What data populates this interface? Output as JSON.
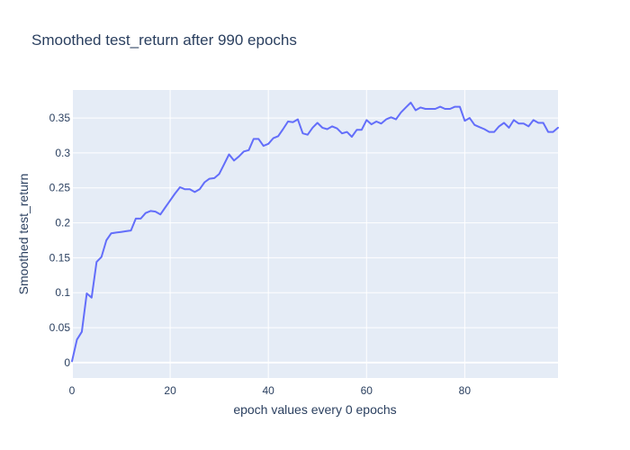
{
  "chart_data": {
    "type": "line",
    "title": "Smoothed test_return after 990 epochs",
    "xlabel": "epoch values every 0 epochs",
    "ylabel": "Smoothed test_return",
    "xlim": [
      0,
      99
    ],
    "ylim": [
      -0.022,
      0.39
    ],
    "x_ticks": [
      0,
      20,
      40,
      60,
      80
    ],
    "y_ticks": [
      0,
      0.05,
      0.1,
      0.15,
      0.2,
      0.25,
      0.3,
      0.35
    ],
    "y_tick_labels": [
      "0",
      "0.05",
      "0.1",
      "0.15",
      "0.2",
      "0.25",
      "0.3",
      "0.35"
    ],
    "grid": true,
    "colors": {
      "line": "#636efa",
      "plot_bg": "#e5ecf6",
      "grid": "#ffffff",
      "text": "#2a3f5f"
    },
    "series": [
      {
        "x": [
          0,
          1,
          2,
          3,
          4,
          5,
          6,
          7,
          8,
          9,
          10,
          11,
          12,
          13,
          14,
          15,
          16,
          17,
          18,
          19,
          20,
          21,
          22,
          23,
          24,
          25,
          26,
          27,
          28,
          29,
          30,
          31,
          32,
          33,
          34,
          35,
          36,
          37,
          38,
          39,
          40,
          41,
          42,
          43,
          44,
          45,
          46,
          47,
          48,
          49,
          50,
          51,
          52,
          53,
          54,
          55,
          56,
          57,
          58,
          59,
          60,
          61,
          62,
          63,
          64,
          65,
          66,
          67,
          68,
          69,
          70,
          71,
          72,
          73,
          74,
          75,
          76,
          77,
          78,
          79,
          80,
          81,
          82,
          83,
          84,
          85,
          86,
          87,
          88,
          89,
          90,
          91,
          92,
          93,
          94,
          95,
          96,
          97,
          98,
          99
        ],
        "y": [
          0.002,
          0.033,
          0.044,
          0.099,
          0.093,
          0.144,
          0.151,
          0.175,
          0.185,
          0.186,
          0.187,
          0.188,
          0.189,
          0.206,
          0.206,
          0.214,
          0.217,
          0.216,
          0.212,
          0.222,
          0.232,
          0.242,
          0.251,
          0.248,
          0.248,
          0.244,
          0.248,
          0.258,
          0.263,
          0.264,
          0.27,
          0.284,
          0.298,
          0.289,
          0.295,
          0.302,
          0.304,
          0.32,
          0.32,
          0.31,
          0.313,
          0.321,
          0.324,
          0.334,
          0.345,
          0.344,
          0.348,
          0.328,
          0.326,
          0.336,
          0.343,
          0.336,
          0.334,
          0.338,
          0.335,
          0.328,
          0.33,
          0.323,
          0.333,
          0.333,
          0.347,
          0.341,
          0.345,
          0.342,
          0.348,
          0.351,
          0.348,
          0.358,
          0.365,
          0.372,
          0.361,
          0.365,
          0.363,
          0.363,
          0.363,
          0.366,
          0.363,
          0.363,
          0.366,
          0.366,
          0.346,
          0.35,
          0.34,
          0.337,
          0.334,
          0.33,
          0.33,
          0.338,
          0.343,
          0.336,
          0.347,
          0.342,
          0.342,
          0.338,
          0.347,
          0.343,
          0.343,
          0.33,
          0.33,
          0.336
        ]
      }
    ]
  }
}
